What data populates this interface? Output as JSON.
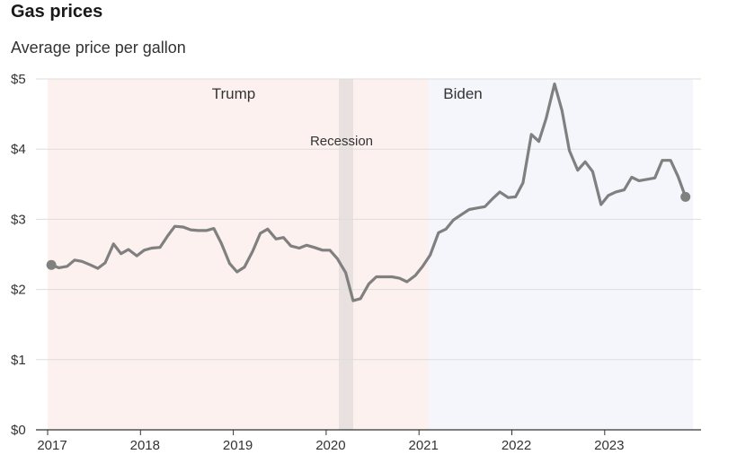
{
  "header": {
    "title": "Gas prices",
    "subtitle": "Average price per gallon"
  },
  "colors": {
    "line": "#808080",
    "trump_band": "#fdf1ef",
    "biden_band": "#f5f6fb",
    "recession_band": "#e8e1e0",
    "grid": "#dddddd"
  },
  "chart_data": {
    "type": "line",
    "title": "Gas prices",
    "subtitle": "Average price per gallon",
    "xlabel": "",
    "ylabel": "",
    "xlim": [
      2017.0,
      2023.95
    ],
    "ylim": [
      0,
      5
    ],
    "y_ticks": [
      0,
      1,
      2,
      3,
      4,
      5
    ],
    "y_tick_labels": [
      "$0",
      "$1",
      "$2",
      "$3",
      "$4",
      "$5"
    ],
    "x_ticks": [
      2017,
      2018,
      2019,
      2020,
      2021,
      2022,
      2023
    ],
    "x_tick_labels": [
      "2017",
      "2018",
      "2019",
      "2020",
      "2021",
      "2022",
      "2023"
    ],
    "grid": true,
    "regions": [
      {
        "label": "Trump",
        "start": 2017.0,
        "end": 2021.05
      },
      {
        "label": "Biden",
        "start": 2021.05,
        "end": 2023.95
      },
      {
        "label": "Recession",
        "start": 2020.08,
        "end": 2020.25
      }
    ],
    "series": [
      {
        "x": [
          2017.04,
          2017.12,
          2017.21,
          2017.29,
          2017.37,
          2017.46,
          2017.54,
          2017.62,
          2017.71,
          2017.79,
          2017.87,
          2017.96,
          2018.04,
          2018.12,
          2018.21,
          2018.29,
          2018.37,
          2018.46,
          2018.54,
          2018.62,
          2018.71,
          2018.79,
          2018.87,
          2018.96,
          2019.04,
          2019.12,
          2019.21,
          2019.29,
          2019.37,
          2019.46,
          2019.54,
          2019.62,
          2019.71,
          2019.79,
          2019.87,
          2019.96,
          2020.04,
          2020.12,
          2020.21,
          2020.29,
          2020.37,
          2020.46,
          2020.54,
          2020.62,
          2020.71,
          2020.79,
          2020.87,
          2020.96,
          2021.04,
          2021.12,
          2021.21,
          2021.29,
          2021.37,
          2021.46,
          2021.54,
          2021.62,
          2021.71,
          2021.79,
          2021.87,
          2021.96,
          2022.04,
          2022.12,
          2022.21,
          2022.29,
          2022.37,
          2022.46,
          2022.54,
          2022.62,
          2022.71,
          2022.79,
          2022.87,
          2022.96,
          2023.04,
          2023.12,
          2023.21,
          2023.29,
          2023.37,
          2023.46,
          2023.54,
          2023.62,
          2023.71,
          2023.79,
          2023.87
        ],
        "y": [
          2.35,
          2.31,
          2.33,
          2.42,
          2.4,
          2.35,
          2.3,
          2.38,
          2.65,
          2.51,
          2.57,
          2.48,
          2.56,
          2.59,
          2.6,
          2.76,
          2.9,
          2.89,
          2.85,
          2.84,
          2.84,
          2.87,
          2.66,
          2.37,
          2.25,
          2.32,
          2.55,
          2.8,
          2.86,
          2.72,
          2.74,
          2.62,
          2.59,
          2.63,
          2.6,
          2.56,
          2.56,
          2.44,
          2.24,
          1.84,
          1.87,
          2.08,
          2.18,
          2.18,
          2.18,
          2.16,
          2.11,
          2.2,
          2.33,
          2.49,
          2.81,
          2.86,
          2.99,
          3.07,
          3.14,
          3.16,
          3.18,
          3.29,
          3.39,
          3.31,
          3.32,
          3.52,
          4.21,
          4.11,
          4.44,
          4.93,
          4.55,
          3.98,
          3.7,
          3.82,
          3.68,
          3.21,
          3.34,
          3.39,
          3.42,
          3.6,
          3.55,
          3.57,
          3.59,
          3.84,
          3.84,
          3.61,
          3.32
        ]
      }
    ]
  }
}
